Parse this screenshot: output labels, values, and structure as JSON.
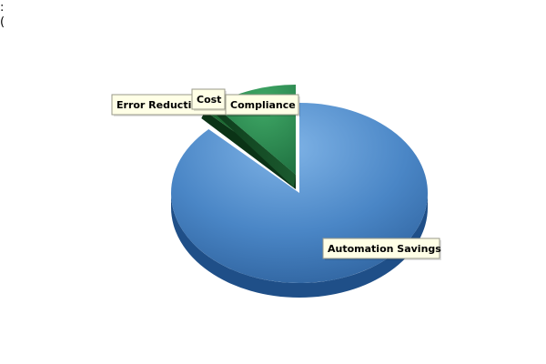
{
  "header": {
    "line1": ":",
    "line2": "("
  },
  "chart_data": {
    "type": "pie",
    "title": "",
    "labels": [
      "Automation Savings",
      "Error Reduction and Cost",
      "Compliance"
    ],
    "values": [
      87.5,
      1.5,
      11.0
    ],
    "colors": {
      "Automation Savings": "#4a86c6",
      "Error Reduction and Cost": "#1d6b33",
      "Compliance": "#2e8a4e"
    },
    "tooltip_labels": {
      "Automation Savings": "Automation Savings",
      "Error Reduction and Cost": "Error Reduction and Cost",
      "Cost": "Cost",
      "Compliance": "Compliance"
    }
  }
}
